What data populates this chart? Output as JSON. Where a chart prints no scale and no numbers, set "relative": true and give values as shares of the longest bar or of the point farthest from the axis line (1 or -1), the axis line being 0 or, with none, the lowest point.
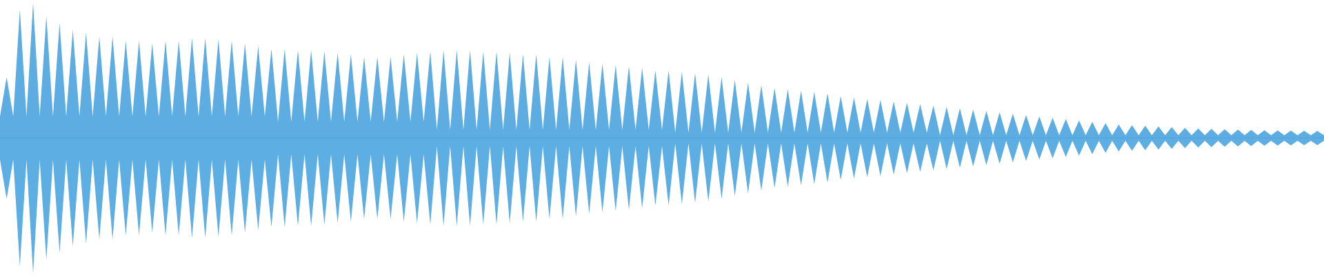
{
  "chart_data": {
    "type": "area",
    "relative": true,
    "ref_lines": [
      {
        "axis": "y",
        "value": 0,
        "color": "#55a6dc"
      }
    ],
    "categories": [
      null,
      null,
      null,
      null,
      null,
      null,
      null,
      null,
      null,
      null,
      null,
      null,
      null,
      null,
      null,
      null,
      null,
      null,
      null,
      null,
      null,
      null,
      null,
      null,
      null,
      null,
      null,
      null,
      null,
      null,
      null,
      null,
      null,
      null,
      null,
      null,
      null,
      null,
      null,
      null,
      null,
      null,
      null,
      null,
      null,
      null,
      null,
      null,
      null,
      null,
      null,
      null,
      null,
      null,
      null,
      null,
      null,
      null,
      null,
      null,
      null,
      null,
      null,
      null,
      null,
      null,
      null,
      null,
      null,
      null,
      null,
      null,
      null,
      null,
      null,
      null,
      null,
      null,
      null,
      null,
      null,
      null,
      null,
      null,
      null,
      null,
      null,
      null,
      null,
      null,
      null,
      null,
      null,
      null,
      null,
      null,
      null,
      null,
      null,
      null,
      null,
      null,
      null,
      null,
      null,
      null,
      null,
      null,
      null,
      null,
      null,
      null,
      null,
      null,
      null,
      null,
      null,
      null,
      null,
      null,
      null,
      null,
      null,
      null,
      null,
      null,
      null,
      null,
      null,
      null,
      null,
      null,
      null,
      null,
      null,
      null,
      null,
      null,
      null,
      null,
      null,
      null,
      null,
      null,
      null,
      null,
      null,
      null,
      null,
      null,
      null,
      null,
      null,
      null,
      null,
      null,
      null,
      null,
      null,
      null,
      null,
      null,
      null,
      null,
      null,
      null,
      null,
      null,
      null,
      null,
      null,
      null,
      null,
      null,
      null,
      null,
      null,
      null,
      null,
      null,
      null,
      null,
      null,
      null,
      null,
      null,
      null,
      null,
      null,
      null,
      null,
      null,
      null,
      null,
      null,
      null,
      null,
      null,
      null,
      null,
      null
    ],
    "series": [
      {
        "color": "#5dade2",
        "values": [
          0.16,
          0.45,
          0.16,
          0.95,
          0.16,
          1.0,
          0.16,
          0.9,
          0.16,
          0.85,
          0.16,
          0.8,
          0.16,
          0.78,
          0.16,
          0.75,
          0.16,
          0.75,
          0.16,
          0.72,
          0.16,
          0.72,
          0.16,
          0.7,
          0.16,
          0.72,
          0.16,
          0.72,
          0.16,
          0.74,
          0.16,
          0.74,
          0.16,
          0.73,
          0.16,
          0.72,
          0.16,
          0.7,
          0.16,
          0.68,
          0.16,
          0.66,
          0.12,
          0.66,
          0.12,
          0.65,
          0.12,
          0.65,
          0.12,
          0.64,
          0.12,
          0.63,
          0.12,
          0.62,
          0.12,
          0.6,
          0.12,
          0.6,
          0.12,
          0.6,
          0.12,
          0.62,
          0.12,
          0.63,
          0.12,
          0.64,
          0.06,
          0.65,
          0.06,
          0.65,
          0.06,
          0.65,
          0.06,
          0.64,
          0.06,
          0.64,
          0.06,
          0.63,
          0.06,
          0.62,
          0.06,
          0.62,
          0.06,
          0.6,
          0.06,
          0.6,
          0.06,
          0.58,
          0.06,
          0.56,
          0.06,
          0.55,
          0.06,
          0.54,
          0.06,
          0.53,
          0.06,
          0.52,
          0.06,
          0.5,
          0.06,
          0.5,
          0.04,
          0.49,
          0.04,
          0.48,
          0.04,
          0.47,
          0.04,
          0.45,
          0.04,
          0.43,
          0.04,
          0.41,
          0.04,
          0.39,
          0.04,
          0.37,
          0.04,
          0.36,
          0.04,
          0.35,
          0.04,
          0.34,
          0.04,
          0.33,
          0.04,
          0.31,
          0.04,
          0.3,
          0.04,
          0.29,
          0.04,
          0.28,
          0.04,
          0.27,
          0.04,
          0.26,
          0.04,
          0.25,
          0.04,
          0.24,
          0.02,
          0.23,
          0.02,
          0.22,
          0.02,
          0.21,
          0.02,
          0.2,
          0.02,
          0.19,
          0.02,
          0.18,
          0.02,
          0.17,
          0.02,
          0.16,
          0.02,
          0.15,
          0.02,
          0.14,
          0.02,
          0.13,
          0.02,
          0.12,
          0.02,
          0.11,
          0.02,
          0.1,
          0.02,
          0.095,
          0.02,
          0.09,
          0.02,
          0.085,
          0.02,
          0.08,
          0.02,
          0.075,
          0.02,
          0.07,
          0.02,
          0.068,
          0.02,
          0.065,
          0.02,
          0.062,
          0.02,
          0.06,
          0.02,
          0.058,
          0.02,
          0.056,
          0.02,
          0.055,
          0.02,
          0.054,
          0.02,
          0.052,
          0.02
        ]
      },
      {
        "color": "#5caee3",
        "values": [
          -0.16,
          -0.45,
          -0.16,
          -0.95,
          -0.16,
          -1.0,
          -0.16,
          -0.9,
          -0.16,
          -0.85,
          -0.16,
          -0.8,
          -0.16,
          -0.78,
          -0.16,
          -0.75,
          -0.16,
          -0.75,
          -0.16,
          -0.72,
          -0.16,
          -0.72,
          -0.16,
          -0.7,
          -0.16,
          -0.72,
          -0.16,
          -0.72,
          -0.16,
          -0.74,
          -0.16,
          -0.74,
          -0.16,
          -0.73,
          -0.16,
          -0.72,
          -0.16,
          -0.7,
          -0.16,
          -0.68,
          -0.16,
          -0.66,
          -0.12,
          -0.66,
          -0.12,
          -0.65,
          -0.12,
          -0.65,
          -0.12,
          -0.64,
          -0.12,
          -0.63,
          -0.12,
          -0.62,
          -0.12,
          -0.6,
          -0.12,
          -0.6,
          -0.12,
          -0.6,
          -0.12,
          -0.62,
          -0.12,
          -0.63,
          -0.12,
          -0.64,
          -0.06,
          -0.65,
          -0.06,
          -0.65,
          -0.06,
          -0.65,
          -0.06,
          -0.64,
          -0.06,
          -0.64,
          -0.06,
          -0.63,
          -0.06,
          -0.62,
          -0.06,
          -0.62,
          -0.06,
          -0.6,
          -0.06,
          -0.6,
          -0.06,
          -0.58,
          -0.06,
          -0.56,
          -0.06,
          -0.55,
          -0.06,
          -0.54,
          -0.06,
          -0.53,
          -0.06,
          -0.52,
          -0.06,
          -0.5,
          -0.06,
          -0.5,
          -0.04,
          -0.49,
          -0.04,
          -0.48,
          -0.04,
          -0.47,
          -0.04,
          -0.45,
          -0.04,
          -0.43,
          -0.04,
          -0.41,
          -0.04,
          -0.39,
          -0.04,
          -0.37,
          -0.04,
          -0.36,
          -0.04,
          -0.35,
          -0.04,
          -0.34,
          -0.04,
          -0.33,
          -0.04,
          -0.31,
          -0.04,
          -0.3,
          -0.04,
          -0.29,
          -0.04,
          -0.28,
          -0.04,
          -0.27,
          -0.04,
          -0.26,
          -0.04,
          -0.25,
          -0.04,
          -0.24,
          -0.02,
          -0.23,
          -0.02,
          -0.22,
          -0.02,
          -0.21,
          -0.02,
          -0.2,
          -0.02,
          -0.19,
          -0.02,
          -0.18,
          -0.02,
          -0.17,
          -0.02,
          -0.16,
          -0.02,
          -0.15,
          -0.02,
          -0.14,
          -0.02,
          -0.13,
          -0.02,
          -0.12,
          -0.02,
          -0.11,
          -0.02,
          -0.1,
          -0.02,
          -0.095,
          -0.02,
          -0.09,
          -0.02,
          -0.085,
          -0.02,
          -0.08,
          -0.02,
          -0.075,
          -0.02,
          -0.07,
          -0.02,
          -0.068,
          -0.02,
          -0.065,
          -0.02,
          -0.062,
          -0.02,
          -0.06,
          -0.02,
          -0.058,
          -0.02,
          -0.056,
          -0.02,
          -0.055,
          -0.02,
          -0.054,
          -0.02,
          -0.052,
          -0.02
        ]
      }
    ]
  }
}
